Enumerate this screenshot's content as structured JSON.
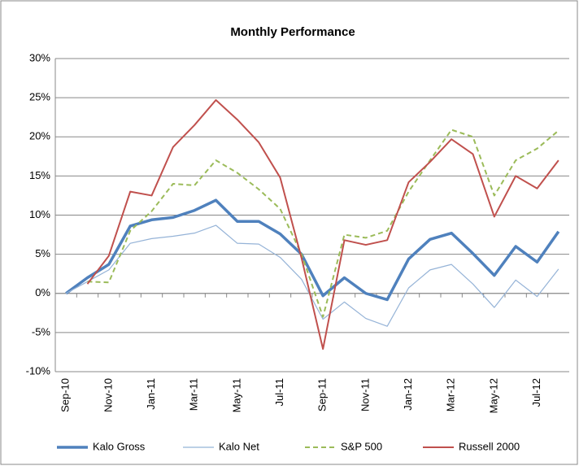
{
  "chart_data": {
    "type": "line",
    "title": "Monthly Performance",
    "categories": [
      "Sep-10",
      null,
      "Nov-10",
      null,
      "Jan-11",
      null,
      "Mar-11",
      null,
      "May-11",
      null,
      "Jul-11",
      null,
      "Sep-11",
      null,
      "Nov-11",
      null,
      "Jan-12",
      null,
      "Mar-12",
      null,
      "May-12",
      null,
      "Jul-12",
      null
    ],
    "series": [
      {
        "name": "Kalo Gross",
        "color": "#4f81bd",
        "width": 3.5,
        "dash": false,
        "values": [
          0,
          2,
          3.7,
          8.6,
          9.4,
          9.7,
          10.6,
          11.9,
          9.2,
          9.2,
          7.6,
          5,
          -0.3,
          2,
          0,
          -0.8,
          4.4,
          6.9,
          7.7,
          5.1,
          2.3,
          6,
          4,
          7.9
        ]
      },
      {
        "name": "Kalo Net",
        "color": "#95b3d7",
        "width": 1.2,
        "dash": false,
        "values": [
          0,
          1.5,
          3,
          6.4,
          7,
          7.3,
          7.7,
          8.7,
          6.4,
          6.3,
          4.6,
          1.8,
          -3.3,
          -1.1,
          -3.2,
          -4.2,
          0.7,
          3,
          3.7,
          1.2,
          -1.8,
          1.7,
          -0.4,
          3.1
        ]
      },
      {
        "name": "S&P 500",
        "color": "#9bbb59",
        "width": 2,
        "dash": true,
        "values": [
          null,
          1.5,
          1.4,
          8,
          10.5,
          14,
          13.8,
          17,
          15.4,
          13.3,
          10.8,
          5,
          -3,
          7.5,
          7.1,
          8,
          13,
          17,
          20.9,
          20,
          12.5,
          17,
          18.5,
          20.8
        ]
      },
      {
        "name": "Russell 2000",
        "color": "#c0504d",
        "width": 2,
        "dash": false,
        "values": [
          null,
          1.2,
          4.8,
          13,
          12.5,
          18.7,
          21.5,
          24.7,
          22.2,
          19.3,
          14.8,
          4.5,
          -7.1,
          6.8,
          6.2,
          6.8,
          14.2,
          16.8,
          19.7,
          17.8,
          9.8,
          15,
          13.4,
          17
        ]
      }
    ],
    "ylim": [
      -10,
      30
    ],
    "yticks": [
      {
        "value": -10,
        "label": "-10%"
      },
      {
        "value": -5,
        "label": "-5%"
      },
      {
        "value": 0,
        "label": "0%"
      },
      {
        "value": 5,
        "label": "5%"
      },
      {
        "value": 10,
        "label": "10%"
      },
      {
        "value": 15,
        "label": "15%"
      },
      {
        "value": 20,
        "label": "20%"
      },
      {
        "value": 25,
        "label": "25%"
      },
      {
        "value": 30,
        "label": "30%"
      }
    ],
    "grid": true,
    "legend": "bottom"
  }
}
